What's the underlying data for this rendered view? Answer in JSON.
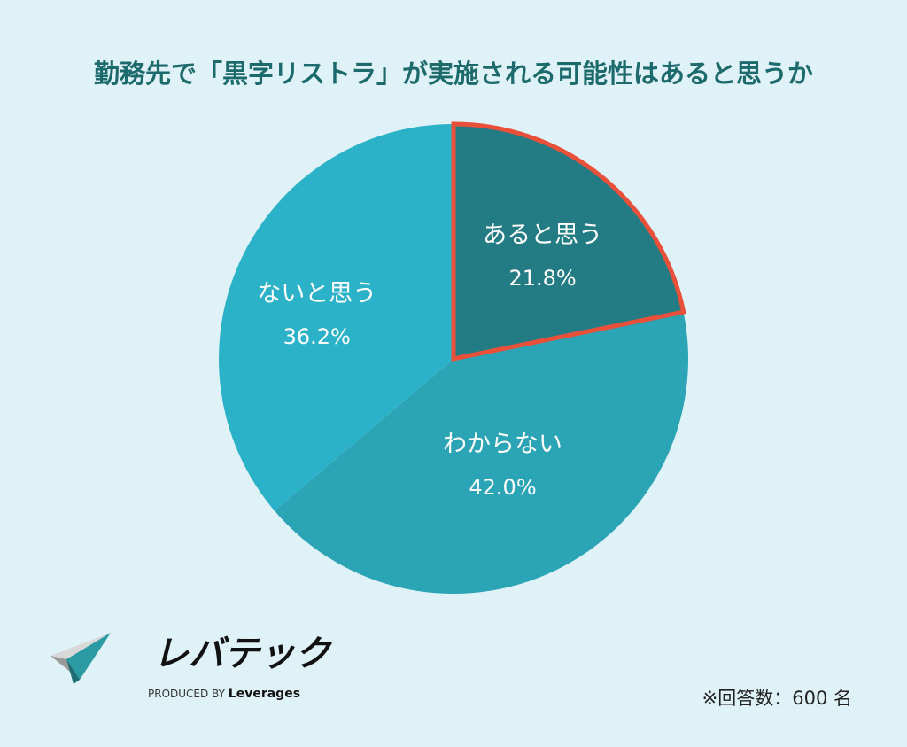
{
  "chart_data": {
    "type": "pie",
    "title": "勤務先で「黒字リストラ」が実施される可能性はあると思うか",
    "slices": [
      {
        "label": "あると思う",
        "value": 21.8,
        "value_text": "21.8%",
        "color": "#237c84",
        "highlighted": true
      },
      {
        "label": "わからない",
        "value": 42.0,
        "value_text": "42.0%",
        "color": "#2ba4b6",
        "highlighted": false
      },
      {
        "label": "ないと思う",
        "value": 36.2,
        "value_text": "36.2%",
        "color": "#2cb2c8",
        "highlighted": false
      }
    ],
    "start": "top",
    "direction": "clockwise",
    "highlight_color": "#e8503a",
    "note": "※回答数：600 名"
  },
  "logo": {
    "name": "レバテック",
    "sub_prefix": "PRODUCED BY",
    "sub_brand": "Leverages"
  },
  "colors": {
    "background": "#dff2f7",
    "title": "#1d6a6c"
  }
}
